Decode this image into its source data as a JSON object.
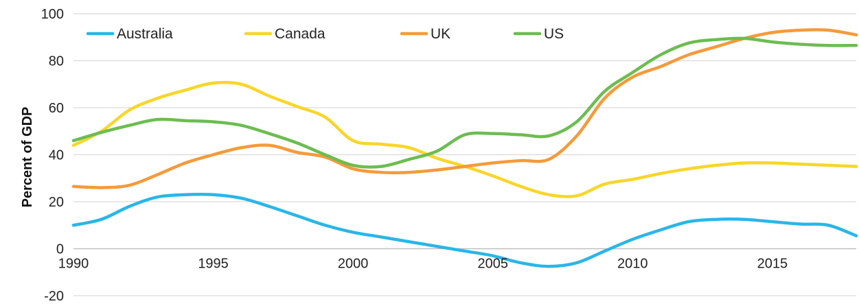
{
  "chart_data": {
    "type": "line",
    "title": "",
    "xlabel": "",
    "ylabel": "Percent of GDP",
    "ylim": [
      -20,
      100
    ],
    "xlim": [
      1990,
      2018
    ],
    "yticks": [
      "-20",
      "0",
      "20",
      "40",
      "60",
      "80",
      "100"
    ],
    "xticks": [
      "1990",
      "1995",
      "2000",
      "2005",
      "2010",
      "2015"
    ],
    "grid": true,
    "legend_position": "top",
    "x": [
      1990,
      1991,
      1992,
      1993,
      1994,
      1995,
      1996,
      1997,
      1998,
      1999,
      2000,
      2001,
      2002,
      2003,
      2004,
      2005,
      2006,
      2007,
      2008,
      2009,
      2010,
      2011,
      2012,
      2013,
      2014,
      2015,
      2016,
      2017,
      2018
    ],
    "series": [
      {
        "name": "Australia",
        "color": "#29b6e8",
        "values": [
          10,
          12.5,
          18,
          22,
          23,
          23,
          21.5,
          18,
          14,
          10,
          7,
          5,
          3,
          1,
          -1,
          -3,
          -6,
          -7.5,
          -6,
          -1,
          4,
          8,
          11.5,
          12.5,
          12.5,
          11.5,
          10.5,
          10,
          5.5
        ]
      },
      {
        "name": "Canada",
        "color": "#f8d62a",
        "values": [
          44,
          50,
          59,
          64,
          67.5,
          70.5,
          70,
          65,
          60.5,
          56,
          46,
          44.5,
          43,
          38.5,
          35,
          31,
          26.5,
          23,
          22.5,
          27.5,
          29.5,
          32,
          34,
          35.5,
          36.5,
          36.5,
          36,
          35.5,
          35
        ]
      },
      {
        "name": "UK",
        "color": "#f59a3a",
        "values": [
          26.5,
          26,
          27,
          31.5,
          36.5,
          40,
          43,
          44,
          41,
          39,
          34,
          32.5,
          32.5,
          33.5,
          35,
          36.5,
          37.5,
          38,
          48,
          64,
          73,
          77.5,
          82.5,
          86,
          89.5,
          92,
          93,
          93,
          91
        ]
      },
      {
        "name": "US",
        "color": "#6cbd50",
        "values": [
          46,
          49.5,
          52.5,
          55,
          54.5,
          54,
          52.5,
          49,
          45,
          40,
          35.5,
          35,
          38,
          41.5,
          48.5,
          49,
          48.5,
          48,
          54,
          67,
          75,
          82.5,
          87.5,
          89,
          89.5,
          88,
          87,
          86.5,
          86.5
        ]
      }
    ]
  }
}
